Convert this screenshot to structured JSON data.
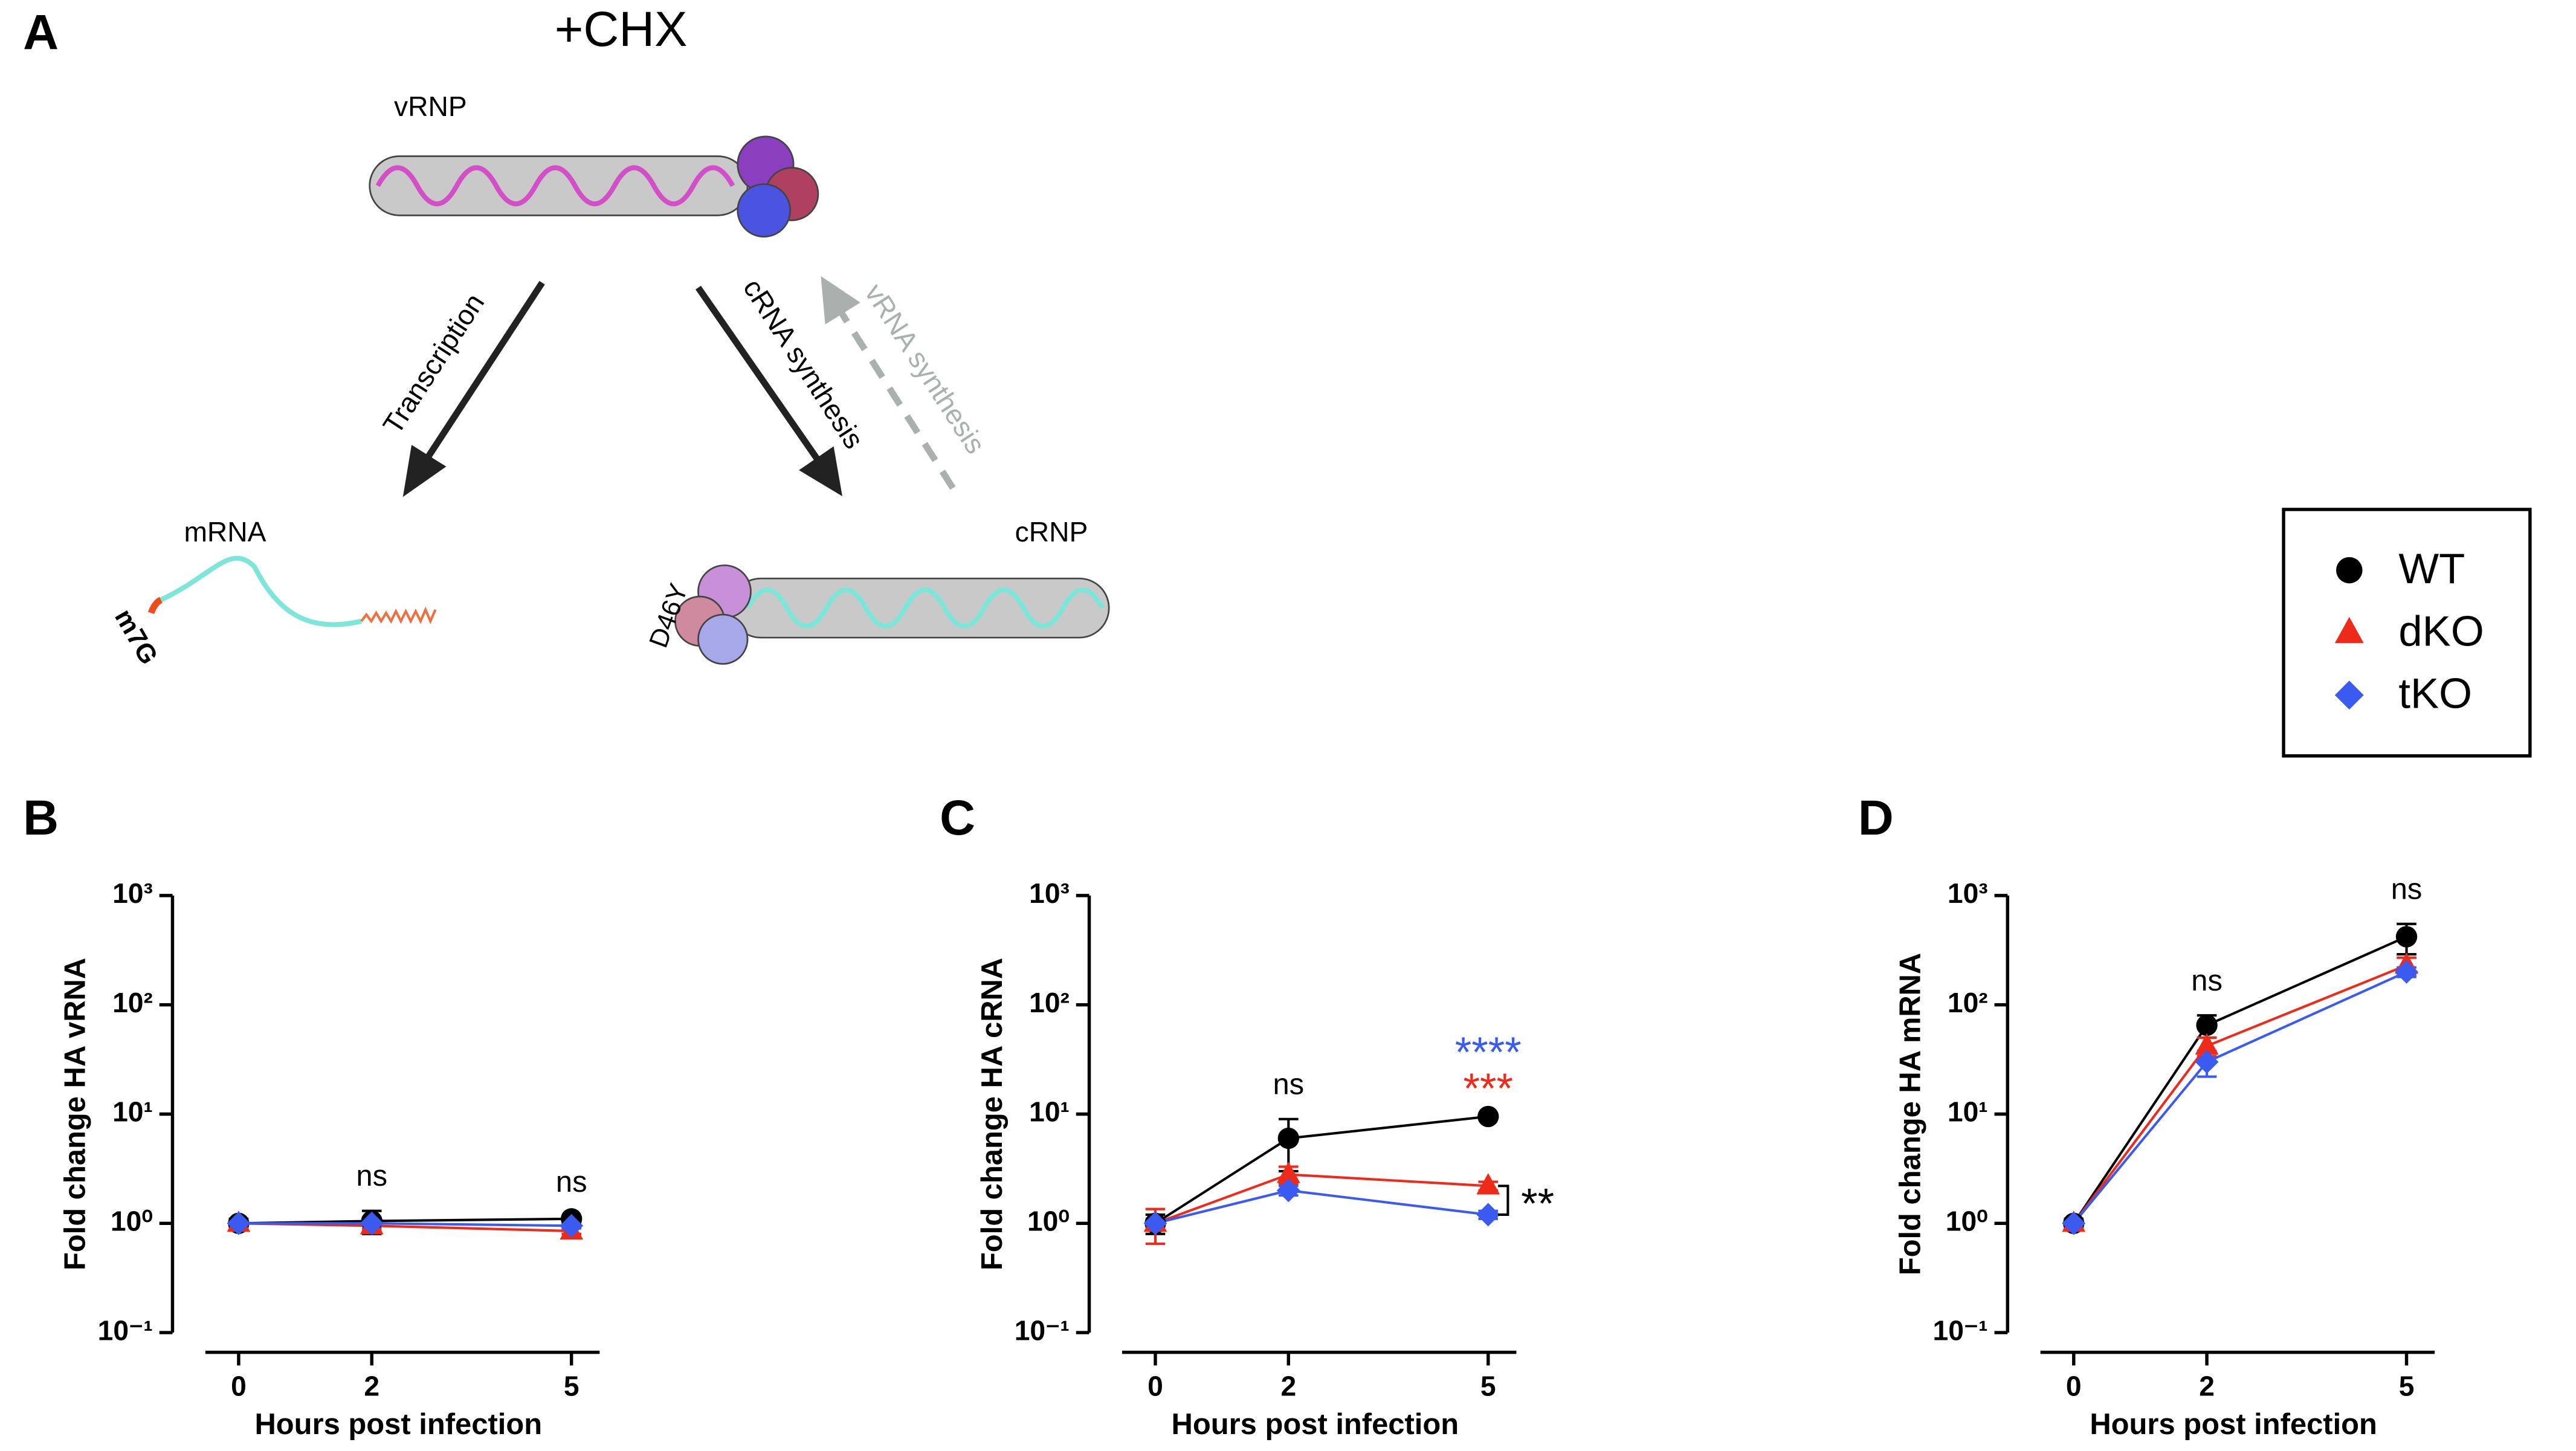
{
  "diagram": {
    "panel": "A",
    "condition": "+CHX",
    "vrnp": "vRNP",
    "transcription": "Transcription",
    "crna_synthesis": "cRNA synthesis",
    "vrna_synthesis": "vRNA synthesis",
    "mrna": "mRNA",
    "cap": "m7G",
    "crnp": "cRNP",
    "mutation": "D46Y"
  },
  "chart_data": [
    {
      "type": "line",
      "panel": "B",
      "xlabel": "Hours post infection",
      "ylabel": "Fold change HA vRNA",
      "x": [
        0,
        2,
        5
      ],
      "xlim": [
        -0.5,
        5.3
      ],
      "xticks": [
        0,
        2,
        5
      ],
      "log": true,
      "ylim": [
        0.1,
        1000
      ],
      "yticks": [
        {
          "value": 0.1,
          "label": "10⁻¹"
        },
        {
          "value": 1,
          "label": "10⁰"
        },
        {
          "value": 10,
          "label": "10¹"
        },
        {
          "value": 100,
          "label": "10²"
        },
        {
          "value": 1000,
          "label": "10³"
        }
      ],
      "series": [
        {
          "name": "WT",
          "color": "#000000",
          "marker": "circle",
          "values": [
            1,
            1.05,
            1.1
          ],
          "errors": [
            0.1,
            0.25,
            0.05
          ]
        },
        {
          "name": "dKO",
          "color": "#ee2a1b",
          "marker": "triangle",
          "values": [
            1,
            0.95,
            0.85
          ],
          "errors": [
            0.05,
            0.1,
            0.05
          ]
        },
        {
          "name": "tKO",
          "color": "#3b5bf0",
          "marker": "diamond",
          "values": [
            1,
            1.0,
            0.95
          ],
          "errors": [
            0.05,
            0.1,
            0.05
          ]
        }
      ],
      "annotations": [
        {
          "text": "ns",
          "x": 2,
          "color": "#000000"
        },
        {
          "text": "ns",
          "x": 5,
          "color": "#000000"
        }
      ]
    },
    {
      "type": "line",
      "panel": "C",
      "xlabel": "Hours post infection",
      "ylabel": "Fold change HA cRNA",
      "x": [
        0,
        2,
        5
      ],
      "xlim": [
        -0.5,
        5.3
      ],
      "xticks": [
        0,
        2,
        5
      ],
      "log": true,
      "ylim": [
        0.1,
        1000
      ],
      "yticks": [
        {
          "value": 0.1,
          "label": "10⁻¹"
        },
        {
          "value": 1,
          "label": "10⁰"
        },
        {
          "value": 10,
          "label": "10¹"
        },
        {
          "value": 100,
          "label": "10²"
        },
        {
          "value": 1000,
          "label": "10³"
        }
      ],
      "series": [
        {
          "name": "WT",
          "color": "#000000",
          "marker": "circle",
          "values": [
            1,
            6,
            9.5
          ],
          "errors": [
            0.2,
            3,
            0.4
          ]
        },
        {
          "name": "dKO",
          "color": "#ee2a1b",
          "marker": "triangle",
          "values": [
            1,
            2.8,
            2.2
          ],
          "errors": [
            0.35,
            0.5,
            0.2
          ]
        },
        {
          "name": "tKO",
          "color": "#3b5bf0",
          "marker": "diamond",
          "values": [
            1,
            2.0,
            1.2
          ],
          "errors": [
            0.1,
            0.2,
            0.1
          ]
        }
      ],
      "annotations": [
        {
          "text": "ns",
          "x": 2,
          "color": "#000000"
        },
        {
          "text": "***",
          "x": 5,
          "color": "#ee2a1b"
        },
        {
          "text": "****",
          "x": 5,
          "color": "#3b5bf0"
        },
        {
          "text": "**",
          "x": 5,
          "color": "#000000",
          "bracket": [
            1,
            2
          ]
        }
      ]
    },
    {
      "type": "line",
      "panel": "D",
      "xlabel": "Hours post infection",
      "ylabel": "Fold change HA mRNA",
      "x": [
        0,
        2,
        5
      ],
      "xlim": [
        -0.5,
        5.3
      ],
      "xticks": [
        0,
        2,
        5
      ],
      "log": true,
      "ylim": [
        0.1,
        1000
      ],
      "yticks": [
        {
          "value": 0.1,
          "label": "10⁻¹"
        },
        {
          "value": 1,
          "label": "10⁰"
        },
        {
          "value": 10,
          "label": "10¹"
        },
        {
          "value": 100,
          "label": "10²"
        },
        {
          "value": 1000,
          "label": "10³"
        }
      ],
      "series": [
        {
          "name": "WT",
          "color": "#000000",
          "marker": "circle",
          "values": [
            1,
            65,
            420
          ],
          "errors": [
            0.1,
            15,
            130
          ]
        },
        {
          "name": "dKO",
          "color": "#ee2a1b",
          "marker": "triangle",
          "values": [
            1,
            42,
            230
          ],
          "errors": [
            0.1,
            8,
            40
          ]
        },
        {
          "name": "tKO",
          "color": "#3b5bf0",
          "marker": "diamond",
          "values": [
            1,
            30,
            200
          ],
          "errors": [
            0.1,
            8,
            20
          ]
        }
      ],
      "annotations": [
        {
          "text": "ns",
          "x": 2,
          "color": "#000000"
        },
        {
          "text": "ns",
          "x": 5,
          "color": "#000000"
        }
      ]
    }
  ]
}
